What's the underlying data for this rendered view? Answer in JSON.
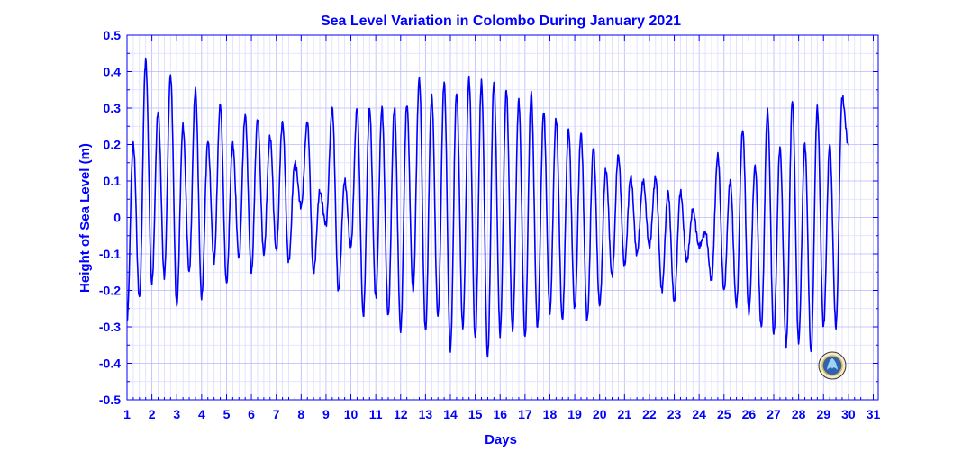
{
  "chart_data": {
    "type": "line",
    "title": "Sea Level Variation in Colombo During January 2021",
    "xlabel": "Days",
    "ylabel": "Height of Sea Level (m)",
    "xlim": [
      1,
      31.2
    ],
    "ylim": [
      -0.5,
      0.5
    ],
    "x_ticks": [
      "1",
      "2",
      "3",
      "4",
      "5",
      "6",
      "7",
      "8",
      "9",
      "10",
      "11",
      "12",
      "13",
      "14",
      "15",
      "16",
      "17",
      "18",
      "19",
      "20",
      "21",
      "22",
      "23",
      "24",
      "25",
      "26",
      "27",
      "28",
      "29",
      "30",
      "31"
    ],
    "y_ticks": [
      "0.5",
      "0.4",
      "0.3",
      "0.2",
      "0.1",
      "0",
      "-0.1",
      "-0.2",
      "-0.3",
      "-0.4",
      "-0.5"
    ],
    "grid": true,
    "line_color": "#0000ff",
    "series": [
      {
        "name": "",
        "x_start": 1,
        "x_step": 0.25,
        "values": [
          -0.28,
          0.2,
          -0.22,
          0.43,
          -0.18,
          0.29,
          -0.16,
          0.39,
          -0.24,
          0.25,
          -0.15,
          0.35,
          -0.22,
          0.21,
          -0.12,
          0.31,
          -0.18,
          0.2,
          -0.11,
          0.28,
          -0.15,
          0.27,
          -0.1,
          0.22,
          -0.09,
          0.26,
          -0.12,
          0.15,
          0.03,
          0.26,
          -0.15,
          0.07,
          -0.02,
          0.3,
          -0.2,
          0.1,
          -0.08,
          0.3,
          -0.27,
          0.3,
          -0.22,
          0.3,
          -0.27,
          0.3,
          -0.31,
          0.31,
          -0.2,
          0.38,
          -0.31,
          0.33,
          -0.27,
          0.37,
          -0.36,
          0.34,
          -0.3,
          0.38,
          -0.33,
          0.37,
          -0.38,
          0.37,
          -0.32,
          0.35,
          -0.31,
          0.32,
          -0.33,
          0.34,
          -0.3,
          0.29,
          -0.26,
          0.27,
          -0.28,
          0.24,
          -0.25,
          0.23,
          -0.28,
          0.19,
          -0.24,
          0.13,
          -0.16,
          0.17,
          -0.13,
          0.11,
          -0.1,
          0.1,
          -0.08,
          0.11,
          -0.2,
          0.07,
          -0.23,
          0.07,
          -0.12,
          0.02,
          -0.08,
          -0.04,
          -0.17,
          0.17,
          -0.2,
          0.1,
          -0.24,
          0.24,
          -0.26,
          0.14,
          -0.3,
          0.29,
          -0.32,
          0.19,
          -0.35,
          0.32,
          -0.34,
          0.2,
          -0.37,
          0.3,
          -0.3,
          0.2,
          -0.3,
          0.33,
          0.2
        ]
      }
    ]
  },
  "logo": {
    "name": "agency-emblem"
  }
}
